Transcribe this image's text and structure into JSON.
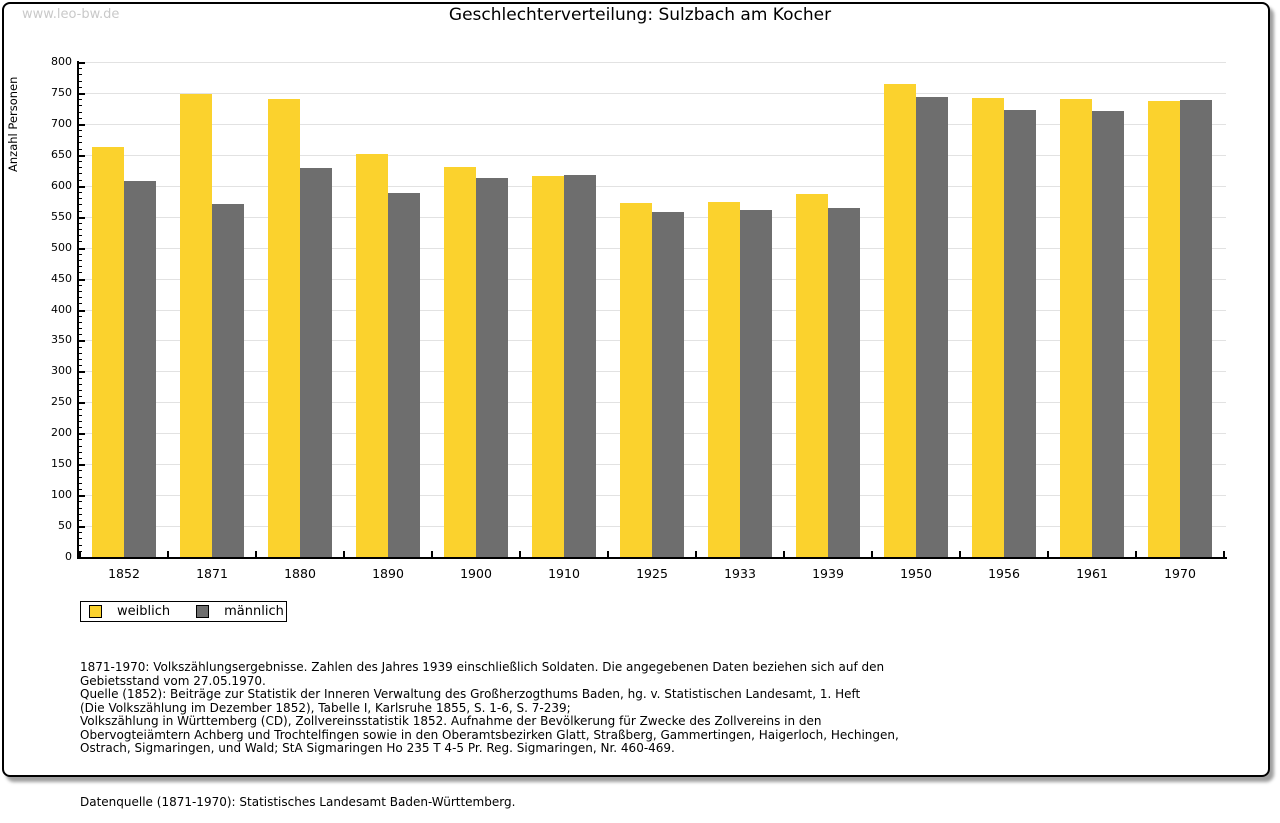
{
  "watermark": "www.leo-bw.de",
  "title": "Geschlechterverteilung: Sulzbach am Kocher",
  "chart_data": {
    "type": "bar",
    "title": "Geschlechterverteilung: Sulzbach am Kocher",
    "xlabel": "",
    "ylabel": "Anzahl Personen",
    "ylim": [
      0,
      800
    ],
    "ytick_step": 50,
    "ytick_minor_step": 10,
    "grid": true,
    "legend_position": "bottom-left",
    "categories": [
      "1852",
      "1871",
      "1880",
      "1890",
      "1900",
      "1910",
      "1925",
      "1933",
      "1939",
      "1950",
      "1956",
      "1961",
      "1970"
    ],
    "series": [
      {
        "name": "weiblich",
        "color": "#FBD22D",
        "values": [
          662,
          748,
          740,
          652,
          630,
          616,
          572,
          573,
          586,
          764,
          742,
          740,
          737
        ]
      },
      {
        "name": "männlich",
        "color": "#6E6E6E",
        "values": [
          607,
          571,
          629,
          588,
          613,
          617,
          558,
          561,
          564,
          744,
          722,
          720,
          739
        ]
      }
    ]
  },
  "footer": {
    "notes": "1871-1970: Volkszählungsergebnisse. Zahlen des Jahres 1939 einschließlich Soldaten. Die angegebenen Daten beziehen sich auf den\nGebietsstand vom 27.05.1970.\nQuelle (1852): Beiträge zur Statistik der Inneren Verwaltung des Großherzogthums Baden, hg. v. Statistischen Landesamt, 1. Heft\n(Die Volkszählung im Dezember 1852), Tabelle I, Karlsruhe 1855, S. 1-6, S. 7-239;\nVolkszählung in Württemberg (CD), Zollvereinsstatistik 1852. Aufnahme der Bevölkerung für Zwecke des Zollvereins in den\nObervogteiämtern Achberg und Trochtelfingen sowie in den Oberamtsbezirken Glatt, Straßberg, Gammertingen, Haigerloch, Hechingen,\nOstrach, Sigmaringen, und Wald; StA Sigmaringen Ho 235 T 4-5 Pr. Reg. Sigmaringen, Nr. 460-469.",
    "datasource": "Datenquelle (1871-1970): Statistisches Landesamt Baden-Württemberg."
  },
  "colors": {
    "weiblich": "#FBD22D",
    "maennlich": "#6E6E6E",
    "gridline": "#E2E2E2",
    "axis": "#000000",
    "watermark": "#C9C9C9",
    "background": "#FFFFFF",
    "frame_border": "#000000"
  }
}
